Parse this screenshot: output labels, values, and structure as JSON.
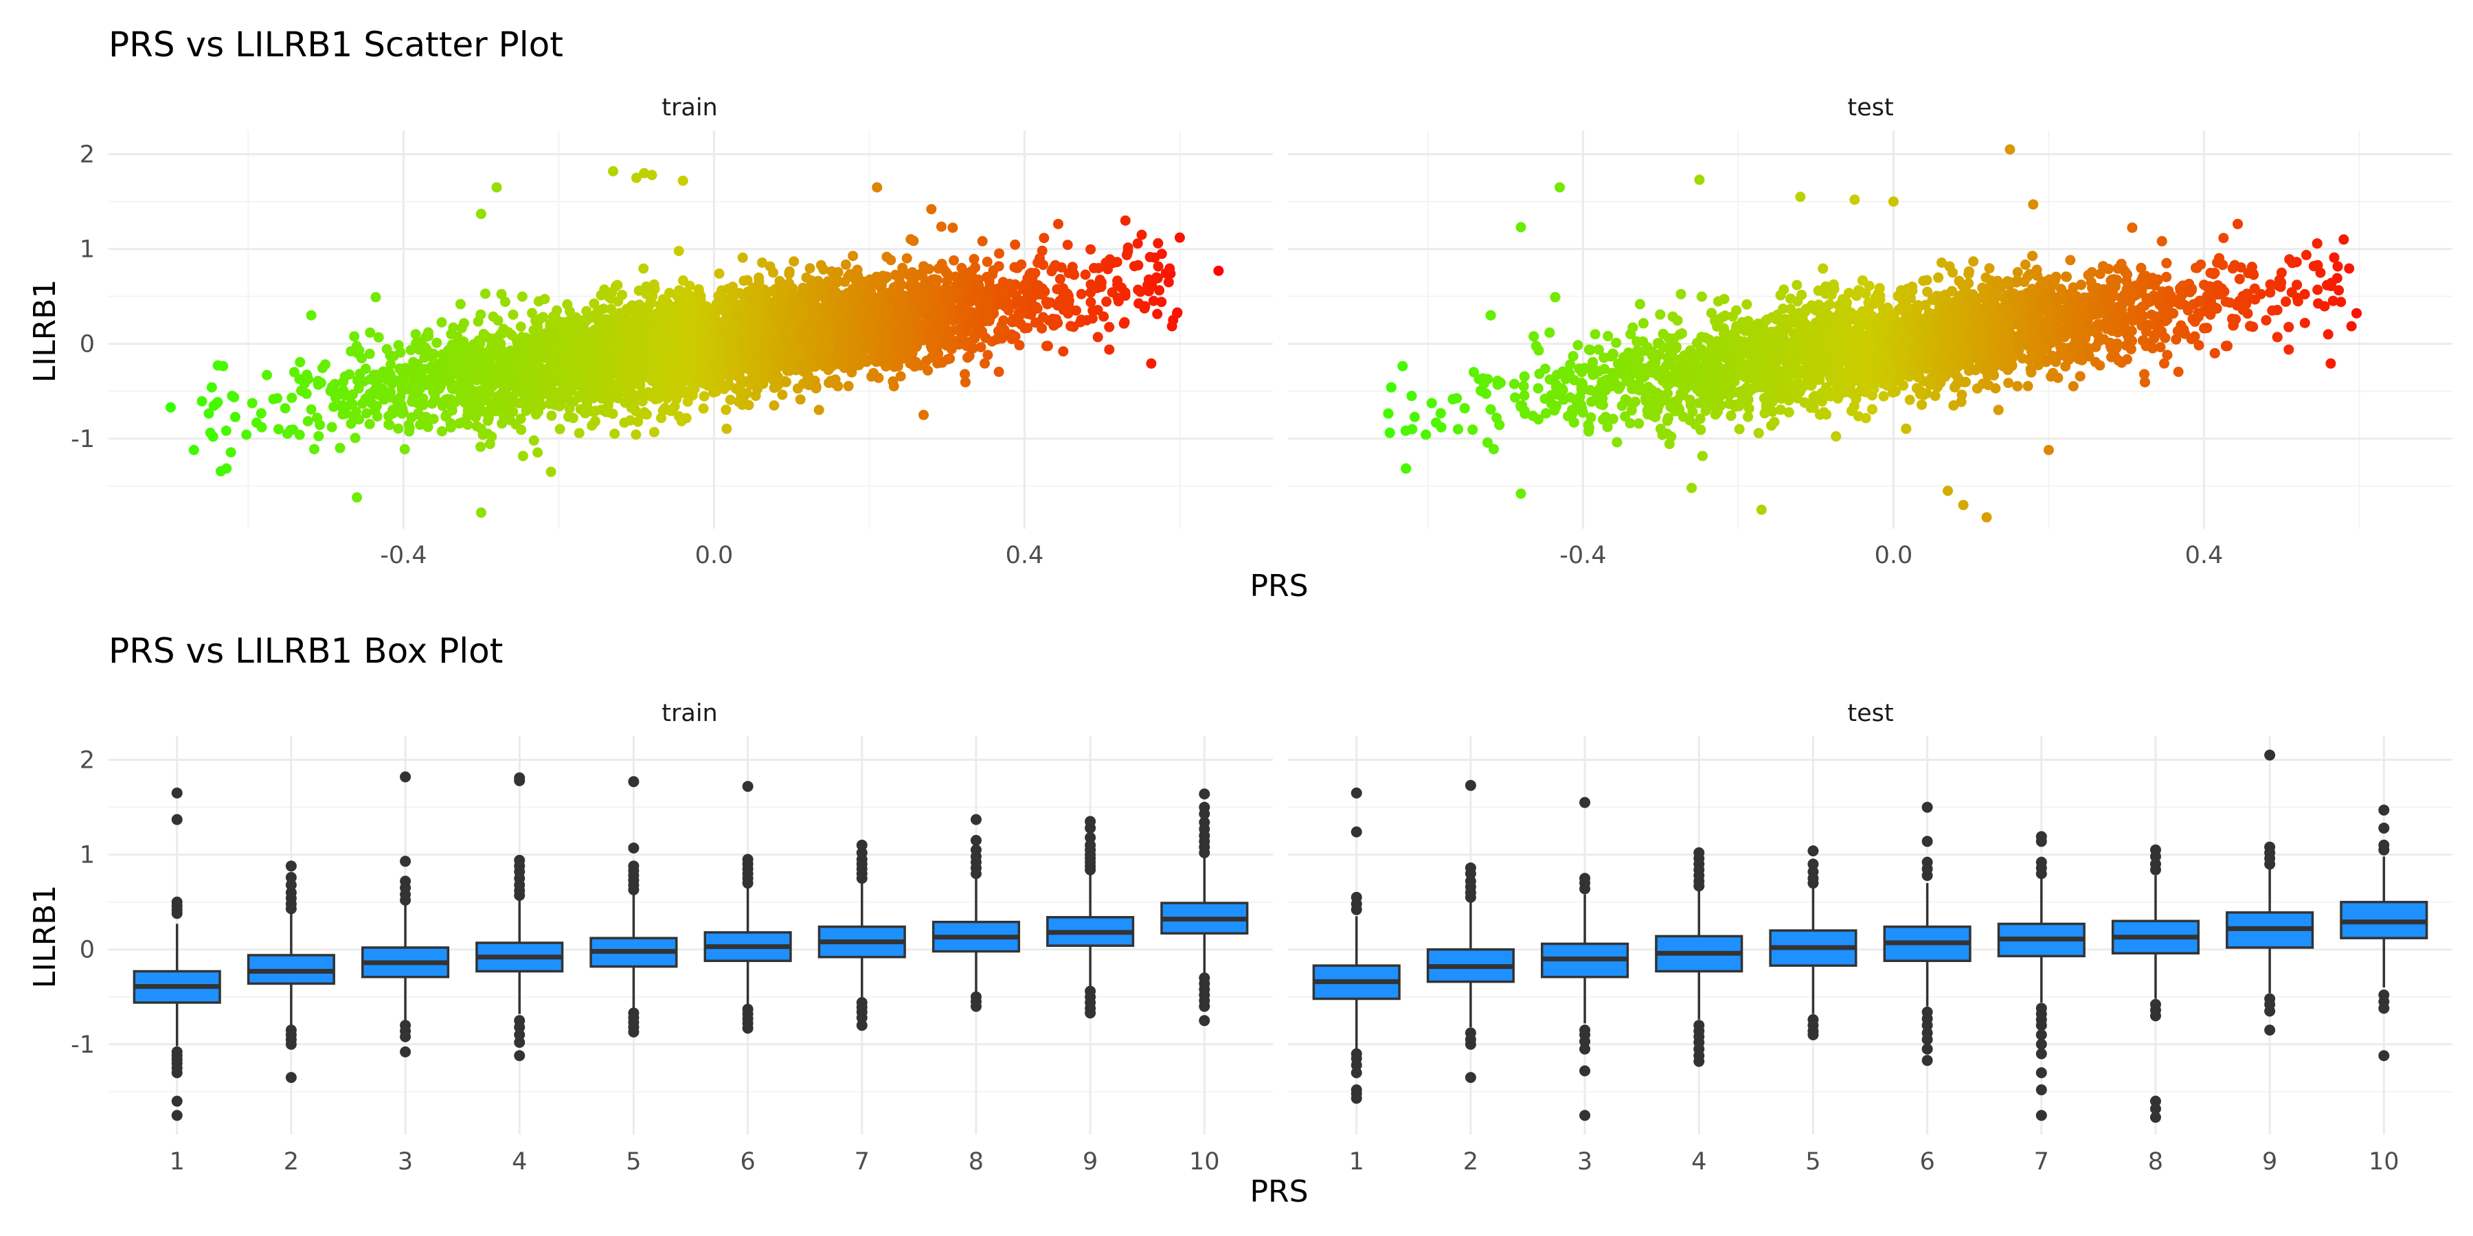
{
  "chart_data": [
    {
      "type": "scatter",
      "title": "PRS vs LILRB1 Scatter Plot",
      "xlabel": "PRS",
      "ylabel": "LILRB1",
      "panels": [
        "train",
        "test"
      ],
      "xlim": [
        -0.78,
        0.72
      ],
      "ylim": [
        -1.95,
        2.25
      ],
      "xticks": [
        -0.4,
        0.0,
        0.4
      ],
      "xtick_labels": [
        "-0.4",
        "0.0",
        "0.4"
      ],
      "yticks": [
        -1,
        0,
        1,
        2
      ],
      "ytick_labels": [
        "-1",
        "0",
        "1",
        "2"
      ],
      "grid": true,
      "legend": "none",
      "color_scale": {
        "low": "#33ff00",
        "mid": "#cccc00",
        "high": "#ff0000",
        "mapped_to": "PRS"
      },
      "trend": {
        "intercept": 0.0,
        "slope": 1.08
      },
      "outliers": {
        "train": [
          [
            -0.7,
            -0.67
          ],
          [
            -0.67,
            -1.12
          ],
          [
            -0.3,
            1.37
          ],
          [
            -0.28,
            1.65
          ],
          [
            -0.13,
            1.82
          ],
          [
            -0.09,
            1.8
          ],
          [
            -0.1,
            1.75
          ],
          [
            -0.08,
            1.78
          ],
          [
            -0.04,
            1.72
          ],
          [
            0.21,
            1.65
          ],
          [
            -0.46,
            -1.62
          ],
          [
            -0.3,
            -1.78
          ],
          [
            -0.21,
            -1.35
          ],
          [
            0.28,
            1.42
          ],
          [
            0.6,
            1.12
          ],
          [
            0.65,
            0.77
          ],
          [
            0.27,
            -0.75
          ],
          [
            0.53,
            1.3
          ],
          [
            0.57,
            0.7
          ]
        ],
        "test": [
          [
            -0.62,
            -0.9
          ],
          [
            -0.48,
            -1.58
          ],
          [
            -0.43,
            1.65
          ],
          [
            -0.48,
            1.23
          ],
          [
            -0.25,
            1.73
          ],
          [
            -0.12,
            1.55
          ],
          [
            -0.05,
            1.52
          ],
          [
            0.15,
            2.05
          ],
          [
            0.18,
            1.47
          ],
          [
            0.0,
            1.5
          ],
          [
            -0.26,
            -1.52
          ],
          [
            -0.17,
            -1.75
          ],
          [
            0.12,
            -1.83
          ],
          [
            0.09,
            -1.7
          ],
          [
            0.07,
            -1.55
          ],
          [
            0.2,
            -1.12
          ],
          [
            0.58,
            1.1
          ],
          [
            0.56,
            0.1
          ],
          [
            0.55,
            0.75
          ],
          [
            0.53,
            0.22
          ],
          [
            0.5,
            0.75
          ]
        ]
      },
      "colors": {
        "panel_bg": "#ffffff",
        "grid_major": "#ebebeb",
        "grid_minor": "#f4f4f4"
      }
    },
    {
      "type": "box",
      "title": "PRS vs LILRB1 Box Plot",
      "xlabel": "PRS",
      "ylabel": "LILRB1",
      "panels": [
        "train",
        "test"
      ],
      "categories": [
        "1",
        "2",
        "3",
        "4",
        "5",
        "6",
        "7",
        "8",
        "9",
        "10"
      ],
      "ylim": [
        -1.95,
        2.25
      ],
      "yticks": [
        -1,
        0,
        1,
        2
      ],
      "ytick_labels": [
        "-1",
        "0",
        "1",
        "2"
      ],
      "grid": true,
      "legend": "none",
      "series": [
        {
          "panel": "train",
          "boxes": [
            {
              "q1": -0.56,
              "median": -0.39,
              "q3": -0.23,
              "lower": -1.02,
              "upper": 0.27,
              "outliers": [
                -1.08,
                -1.12,
                -1.16,
                -1.2,
                -1.25,
                -1.3,
                -1.6,
                -1.75,
                0.38,
                0.42,
                0.46,
                0.5,
                1.37,
                1.65
              ]
            },
            {
              "q1": -0.36,
              "median": -0.23,
              "q3": -0.06,
              "lower": -0.8,
              "upper": 0.38,
              "outliers": [
                -0.85,
                -0.9,
                -0.95,
                -1.0,
                -1.35,
                0.43,
                0.48,
                0.54,
                0.6,
                0.68,
                0.76,
                0.88
              ]
            },
            {
              "q1": -0.29,
              "median": -0.14,
              "q3": 0.02,
              "lower": -0.75,
              "upper": 0.48,
              "outliers": [
                -0.8,
                -0.86,
                -0.92,
                -1.08,
                0.52,
                0.58,
                0.65,
                0.72,
                0.93,
                1.82
              ]
            },
            {
              "q1": -0.23,
              "median": -0.08,
              "q3": 0.07,
              "lower": -0.68,
              "upper": 0.52,
              "outliers": [
                -0.75,
                -0.82,
                -0.9,
                -0.98,
                -1.12,
                0.57,
                0.62,
                0.68,
                0.75,
                0.82,
                0.88,
                0.94,
                1.78,
                1.81
              ]
            },
            {
              "q1": -0.18,
              "median": -0.02,
              "q3": 0.12,
              "lower": -0.62,
              "upper": 0.58,
              "outliers": [
                -0.67,
                -0.72,
                -0.77,
                -0.82,
                -0.87,
                0.63,
                0.68,
                0.73,
                0.78,
                0.83,
                0.88,
                1.07,
                1.77
              ]
            },
            {
              "q1": -0.12,
              "median": 0.03,
              "q3": 0.18,
              "lower": -0.58,
              "upper": 0.65,
              "outliers": [
                -0.63,
                -0.68,
                -0.73,
                -0.78,
                -0.83,
                0.7,
                0.75,
                0.8,
                0.85,
                0.9,
                0.95,
                1.72
              ]
            },
            {
              "q1": -0.08,
              "median": 0.08,
              "q3": 0.24,
              "lower": -0.52,
              "upper": 0.7,
              "outliers": [
                -0.56,
                -0.61,
                -0.66,
                -0.72,
                -0.8,
                0.75,
                0.8,
                0.85,
                0.9,
                0.95,
                1.02,
                1.1
              ]
            },
            {
              "q1": -0.02,
              "median": 0.13,
              "q3": 0.29,
              "lower": -0.46,
              "upper": 0.75,
              "outliers": [
                -0.5,
                -0.55,
                -0.6,
                0.8,
                0.86,
                0.92,
                0.98,
                1.05,
                1.15,
                1.37
              ]
            },
            {
              "q1": 0.04,
              "median": 0.18,
              "q3": 0.34,
              "lower": -0.4,
              "upper": 0.8,
              "outliers": [
                -0.44,
                -0.5,
                -0.56,
                -0.62,
                -0.67,
                0.84,
                0.88,
                0.92,
                0.96,
                1.0,
                1.05,
                1.1,
                1.18,
                1.28,
                1.35
              ]
            },
            {
              "q1": 0.17,
              "median": 0.32,
              "q3": 0.49,
              "lower": -0.25,
              "upper": 0.97,
              "outliers": [
                -0.3,
                -0.36,
                -0.42,
                -0.48,
                -0.54,
                -0.6,
                -0.75,
                1.02,
                1.08,
                1.14,
                1.2,
                1.27,
                1.34,
                1.43,
                1.5,
                1.64
              ]
            }
          ]
        },
        {
          "panel": "test",
          "boxes": [
            {
              "q1": -0.52,
              "median": -0.34,
              "q3": -0.17,
              "lower": -1.05,
              "upper": 0.35,
              "outliers": [
                -1.1,
                -1.15,
                -1.22,
                -1.3,
                -1.48,
                -1.52,
                -1.57,
                0.42,
                0.48,
                0.55,
                1.24,
                1.65
              ]
            },
            {
              "q1": -0.34,
              "median": -0.18,
              "q3": 0.0,
              "lower": -0.82,
              "upper": 0.5,
              "outliers": [
                -0.88,
                -0.95,
                -1.0,
                -1.35,
                0.55,
                0.6,
                0.66,
                0.72,
                0.8,
                0.86,
                1.73
              ]
            },
            {
              "q1": -0.29,
              "median": -0.1,
              "q3": 0.06,
              "lower": -0.78,
              "upper": 0.58,
              "outliers": [
                -0.85,
                -0.9,
                -0.97,
                -1.05,
                -1.28,
                -1.75,
                0.64,
                0.7,
                0.75,
                1.55
              ]
            },
            {
              "q1": -0.23,
              "median": -0.04,
              "q3": 0.14,
              "lower": -0.74,
              "upper": 0.62,
              "outliers": [
                -0.8,
                -0.86,
                -0.92,
                -0.98,
                -1.05,
                -1.12,
                -1.18,
                0.67,
                0.72,
                0.78,
                0.84,
                0.9,
                0.96,
                1.02
              ]
            },
            {
              "q1": -0.17,
              "median": 0.02,
              "q3": 0.2,
              "lower": -0.68,
              "upper": 0.65,
              "outliers": [
                -0.74,
                -0.8,
                -0.86,
                -0.9,
                0.7,
                0.75,
                0.82,
                0.9,
                1.04
              ]
            },
            {
              "q1": -0.12,
              "median": 0.07,
              "q3": 0.24,
              "lower": -0.6,
              "upper": 0.7,
              "outliers": [
                -0.66,
                -0.73,
                -0.8,
                -0.88,
                -0.95,
                -1.05,
                -1.17,
                0.78,
                0.85,
                0.92,
                1.14,
                1.5
              ]
            },
            {
              "q1": -0.07,
              "median": 0.11,
              "q3": 0.27,
              "lower": -0.56,
              "upper": 0.75,
              "outliers": [
                -0.62,
                -0.68,
                -0.74,
                -0.8,
                -0.9,
                -1.0,
                -1.1,
                -1.3,
                -1.48,
                -1.75,
                0.8,
                0.86,
                0.92,
                1.14,
                1.19
              ]
            },
            {
              "q1": -0.04,
              "median": 0.13,
              "q3": 0.3,
              "lower": -0.52,
              "upper": 0.78,
              "outliers": [
                -0.58,
                -0.64,
                -0.7,
                -1.6,
                -1.68,
                -1.77,
                0.84,
                0.9,
                0.98,
                1.05
              ]
            },
            {
              "q1": 0.02,
              "median": 0.22,
              "q3": 0.39,
              "lower": -0.46,
              "upper": 0.85,
              "outliers": [
                -0.52,
                -0.58,
                -0.65,
                -0.85,
                0.9,
                0.96,
                1.02,
                1.08,
                2.05
              ]
            },
            {
              "q1": 0.12,
              "median": 0.29,
              "q3": 0.5,
              "lower": -0.4,
              "upper": 0.98,
              "outliers": [
                -0.48,
                -0.55,
                -0.62,
                -1.12,
                1.05,
                1.1,
                1.28,
                1.47
              ]
            }
          ]
        }
      ],
      "colors": {
        "box_fill": "#1e90ff",
        "box_line": "#333333",
        "point": "#333333",
        "grid_major": "#ebebeb",
        "grid_minor": "#f4f4f4"
      }
    }
  ]
}
